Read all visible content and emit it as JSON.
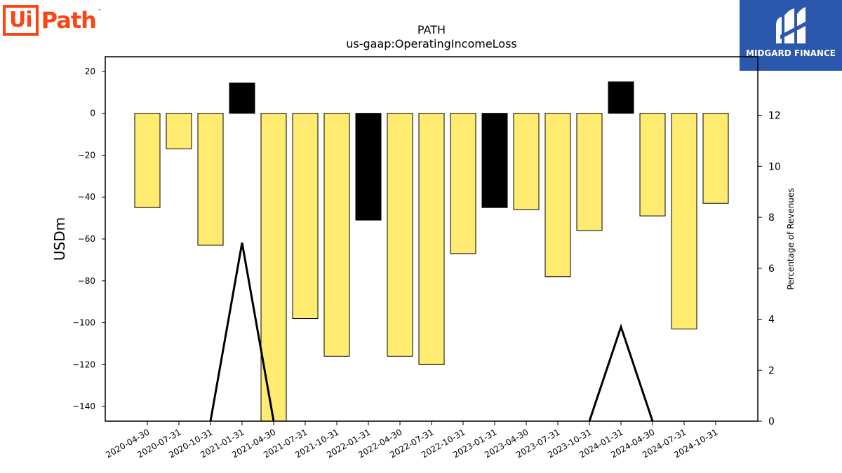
{
  "header": {
    "logo_left": "Ui",
    "logo_right": "Path",
    "logo_tm": "™",
    "badge_text": "MIDGARD FINANCE"
  },
  "chart_data": {
    "type": "bar",
    "title": "PATH",
    "subtitle": "us-gaap:OperatingIncomeLoss",
    "ylabel": "USDm",
    "y2label": "Percentage of Revenues",
    "categories": [
      "2020-04-30",
      "2020-07-31",
      "2020-10-31",
      "2021-01-31",
      "2021-04-30",
      "2021-07-31",
      "2021-10-31",
      "2022-01-31",
      "2022-04-30",
      "2022-07-31",
      "2022-10-31",
      "2023-01-31",
      "2023-04-30",
      "2023-07-31",
      "2023-10-31",
      "2024-01-31",
      "2024-04-30",
      "2024-07-31",
      "2024-10-31"
    ],
    "values": [
      -45,
      -17,
      -63,
      14.5,
      -148,
      -98,
      -116,
      -51,
      -116,
      -120,
      -67,
      -45,
      -46,
      -78,
      -56,
      15,
      -49,
      -103,
      -43
    ],
    "bar_colors": [
      "#ffeb70",
      "#ffeb70",
      "#ffeb70",
      "#000000",
      "#ffeb70",
      "#ffeb70",
      "#ffeb70",
      "#000000",
      "#ffeb70",
      "#ffeb70",
      "#ffeb70",
      "#000000",
      "#ffeb70",
      "#ffeb70",
      "#ffeb70",
      "#000000",
      "#ffeb70",
      "#ffeb70",
      "#ffeb70"
    ],
    "line_series": {
      "axis": "right",
      "values": [
        null,
        null,
        null,
        7.0,
        0,
        0,
        0,
        0,
        0,
        0,
        0,
        0,
        0,
        0,
        0,
        3.7,
        null,
        null,
        null
      ],
      "segments": [
        {
          "points": [
            [
              "2020-10-31",
              0
            ],
            [
              "2021-01-31",
              7.0
            ],
            [
              "2021-04-30",
              0
            ]
          ]
        },
        {
          "points": [
            [
              "2023-10-31",
              0
            ],
            [
              "2024-01-31",
              3.7
            ],
            [
              "2024-04-30",
              0
            ]
          ]
        }
      ]
    },
    "ylim": [
      -147,
      27
    ],
    "yticks": [
      20,
      0,
      -20,
      -40,
      -60,
      -80,
      -100,
      -120,
      -140
    ],
    "ytick_labels": [
      "20",
      "0",
      "−20",
      "−40",
      "−60",
      "−80",
      "−100",
      "−120",
      "−140"
    ],
    "y2lim": [
      0,
      14.3
    ],
    "y2ticks": [
      0,
      2,
      4,
      6,
      8,
      10,
      12
    ],
    "colors": {
      "positive": "#000000",
      "negative": "#ffeb70",
      "edge": "#000000",
      "line": "#000000"
    },
    "grid": false,
    "legend": "none"
  }
}
